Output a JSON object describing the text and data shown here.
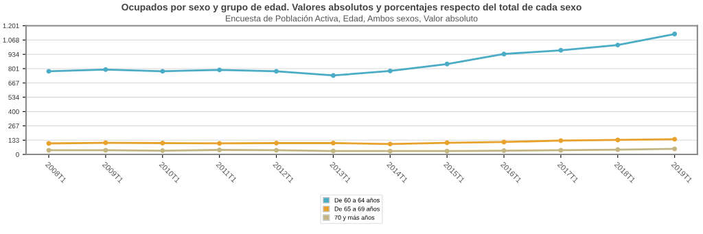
{
  "chart_data": {
    "type": "line",
    "title": "Ocupados por sexo y grupo de edad. Valores absolutos y porcentajes respecto del total de cada sexo",
    "subtitle": "Encuesta de Población Activa, Edad, Ambos sexos, Valor absoluto",
    "categories": [
      "2008T1",
      "2009T1",
      "2010T1",
      "2011T1",
      "2012T1",
      "2013T1",
      "2014T1",
      "2015T1",
      "2016T1",
      "2017T1",
      "2018T1",
      "2019T1"
    ],
    "series": [
      {
        "name": "De 60 a 64 años",
        "color": "#4bacc6",
        "values": [
          776,
          792,
          776,
          789,
          776,
          737,
          779,
          844,
          937,
          972,
          1021,
          1124
        ]
      },
      {
        "name": "De 65 a 69 años",
        "color": "#e8a22c",
        "values": [
          103,
          109,
          106,
          103,
          106,
          106,
          97,
          109,
          116,
          129,
          135,
          142
        ]
      },
      {
        "name": "70 y más años",
        "color": "#c4b683",
        "values": [
          39,
          39,
          35,
          42,
          39,
          32,
          31,
          31,
          35,
          39,
          45,
          52
        ]
      }
    ],
    "ylim": [
      0,
      1201
    ],
    "yticks": [
      0,
      {
        "value": 133,
        "label": "133"
      },
      {
        "value": 267,
        "label": "267"
      },
      {
        "value": 400,
        "label": "400"
      },
      {
        "value": 534,
        "label": "534"
      },
      {
        "value": 667,
        "label": "667"
      },
      {
        "value": 801,
        "label": "801"
      },
      {
        "value": 934,
        "label": "934"
      },
      {
        "value": 1068,
        "label": "1.068"
      },
      {
        "value": 1201,
        "label": "1.201"
      }
    ],
    "grid": "y",
    "legend": "bottom",
    "marker": "circle",
    "line_style": "solid"
  }
}
